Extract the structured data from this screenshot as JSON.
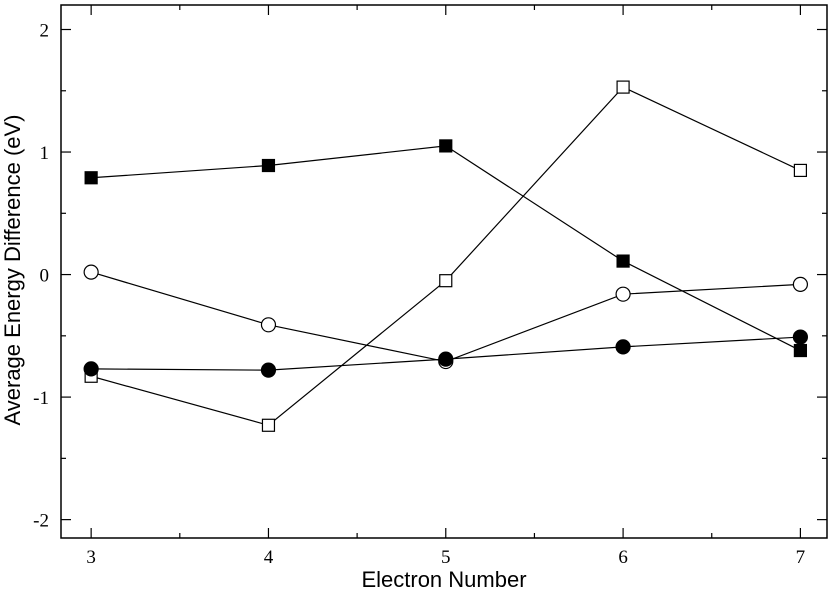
{
  "chart_data": {
    "type": "line",
    "xlabel": "Electron Number",
    "ylabel": "Average Energy Difference (eV)",
    "x": [
      3,
      4,
      5,
      6,
      7
    ],
    "xlim": [
      2.83,
      7.15
    ],
    "ylim": [
      -2.15,
      2.2
    ],
    "x_ticks": [
      3,
      4,
      5,
      6,
      7
    ],
    "x_tick_labels": [
      "3",
      "4",
      "5",
      "6",
      "7"
    ],
    "y_ticks": [
      2,
      1,
      0,
      -1,
      -2
    ],
    "y_tick_labels": [
      "2",
      "1",
      "0",
      "-1",
      "-2"
    ],
    "grid": false,
    "series": [
      {
        "marker": "square-filled",
        "values": [
          0.79,
          0.89,
          1.05,
          0.11,
          -0.62
        ]
      },
      {
        "marker": "square-open",
        "values": [
          -0.83,
          -1.23,
          -0.05,
          1.53,
          0.85
        ]
      },
      {
        "marker": "circle-open",
        "values": [
          0.02,
          -0.41,
          -0.71,
          -0.16,
          -0.08
        ]
      },
      {
        "marker": "circle-filled",
        "values": [
          -0.77,
          -0.78,
          -0.69,
          -0.59,
          -0.51
        ]
      }
    ]
  }
}
